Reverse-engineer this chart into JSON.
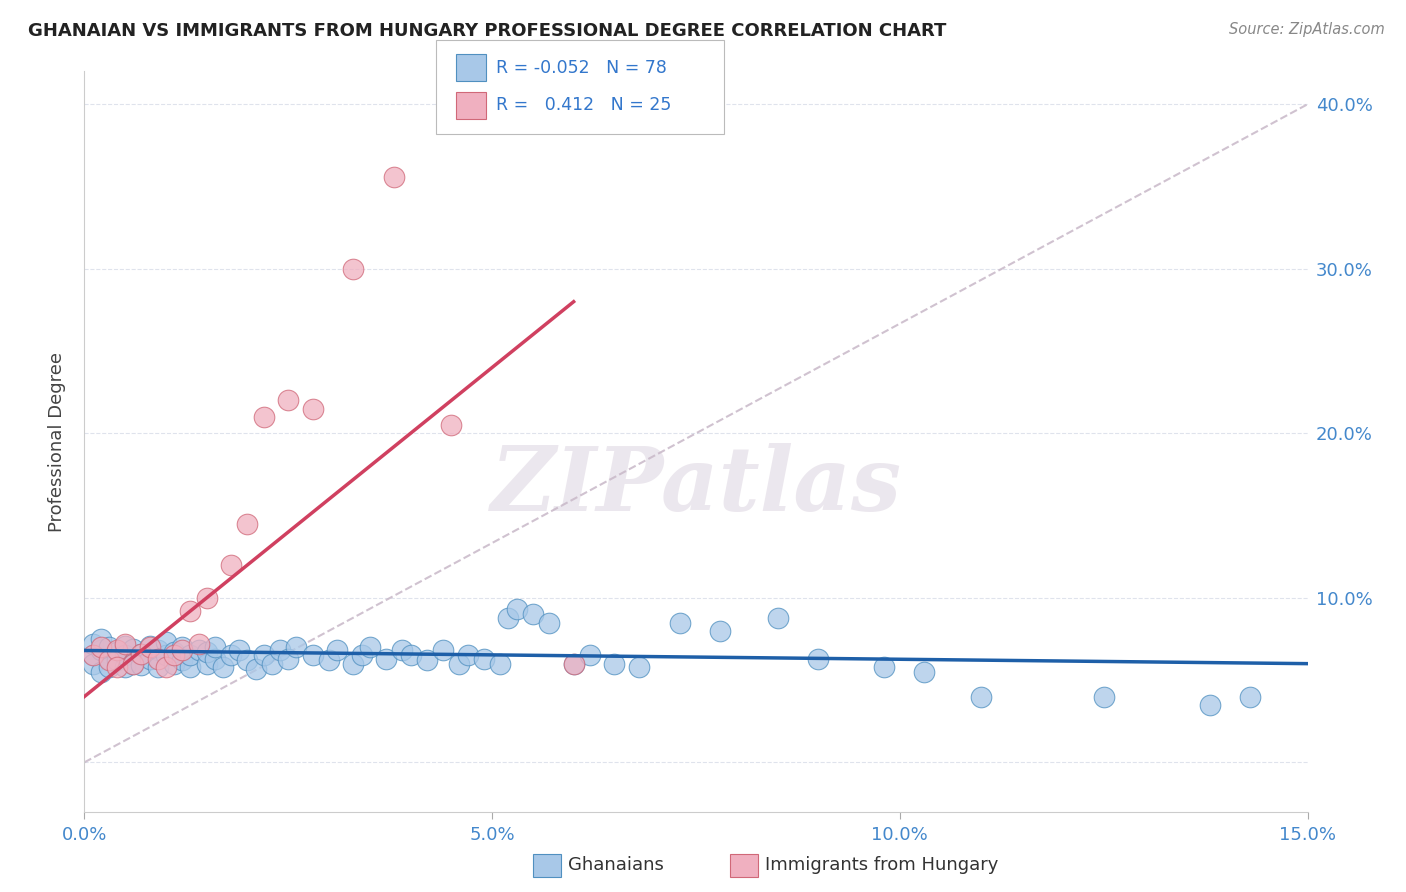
{
  "title": "GHANAIAN VS IMMIGRANTS FROM HUNGARY PROFESSIONAL DEGREE CORRELATION CHART",
  "source": "Source: ZipAtlas.com",
  "ylabel": "Professional Degree",
  "watermark_text": "ZIPatlas",
  "legend_blue_r": "-0.052",
  "legend_blue_n": "78",
  "legend_pink_r": "0.412",
  "legend_pink_n": "25",
  "blue_fill": "#a8c8e8",
  "blue_edge": "#5090c0",
  "pink_fill": "#f0b0c0",
  "pink_edge": "#d06878",
  "blue_line_color": "#1e5fa8",
  "pink_line_color": "#d04060",
  "diag_line_color": "#c8b8c8",
  "x_min": 0.0,
  "x_max": 0.15,
  "y_min": -0.03,
  "y_max": 0.42,
  "x_ticks": [
    0.0,
    0.05,
    0.1,
    0.15
  ],
  "x_tick_labels": [
    "0.0%",
    "5.0%",
    "10.0%",
    "15.0%"
  ],
  "y_ticks": [
    0.0,
    0.1,
    0.2,
    0.3,
    0.4
  ],
  "y_tick_labels": [
    "",
    "10.0%",
    "20.0%",
    "30.0%",
    "40.0%"
  ],
  "grid_color": "#d8dce8",
  "blue_x": [
    0.001,
    0.001,
    0.001,
    0.002,
    0.002,
    0.002,
    0.003,
    0.003,
    0.003,
    0.004,
    0.004,
    0.005,
    0.005,
    0.005,
    0.006,
    0.006,
    0.007,
    0.007,
    0.008,
    0.008,
    0.009,
    0.009,
    0.01,
    0.01,
    0.011,
    0.011,
    0.012,
    0.012,
    0.013,
    0.013,
    0.014,
    0.015,
    0.015,
    0.016,
    0.016,
    0.017,
    0.018,
    0.019,
    0.02,
    0.021,
    0.022,
    0.023,
    0.024,
    0.025,
    0.026,
    0.028,
    0.03,
    0.031,
    0.033,
    0.034,
    0.035,
    0.037,
    0.039,
    0.04,
    0.042,
    0.044,
    0.046,
    0.047,
    0.049,
    0.051,
    0.052,
    0.053,
    0.055,
    0.057,
    0.06,
    0.062,
    0.065,
    0.068,
    0.073,
    0.078,
    0.085,
    0.09,
    0.098,
    0.103,
    0.11,
    0.125,
    0.138,
    0.143
  ],
  "blue_y": [
    0.065,
    0.072,
    0.06,
    0.068,
    0.055,
    0.075,
    0.063,
    0.07,
    0.058,
    0.067,
    0.062,
    0.071,
    0.058,
    0.065,
    0.069,
    0.06,
    0.066,
    0.059,
    0.071,
    0.063,
    0.068,
    0.058,
    0.065,
    0.073,
    0.06,
    0.067,
    0.062,
    0.07,
    0.058,
    0.065,
    0.068,
    0.06,
    0.067,
    0.063,
    0.07,
    0.058,
    0.065,
    0.068,
    0.062,
    0.057,
    0.065,
    0.06,
    0.068,
    0.063,
    0.07,
    0.065,
    0.062,
    0.068,
    0.06,
    0.065,
    0.07,
    0.063,
    0.068,
    0.065,
    0.062,
    0.068,
    0.06,
    0.065,
    0.063,
    0.06,
    0.088,
    0.093,
    0.09,
    0.085,
    0.06,
    0.065,
    0.06,
    0.058,
    0.085,
    0.08,
    0.088,
    0.063,
    0.058,
    0.055,
    0.04,
    0.04,
    0.035,
    0.04
  ],
  "pink_x": [
    0.001,
    0.002,
    0.003,
    0.004,
    0.004,
    0.005,
    0.006,
    0.007,
    0.008,
    0.009,
    0.01,
    0.011,
    0.012,
    0.013,
    0.014,
    0.015,
    0.018,
    0.02,
    0.022,
    0.025,
    0.028,
    0.033,
    0.038,
    0.045,
    0.06
  ],
  "pink_y": [
    0.065,
    0.07,
    0.062,
    0.068,
    0.058,
    0.072,
    0.06,
    0.066,
    0.07,
    0.063,
    0.058,
    0.065,
    0.068,
    0.092,
    0.072,
    0.1,
    0.12,
    0.145,
    0.21,
    0.22,
    0.215,
    0.3,
    0.356,
    0.205,
    0.06
  ],
  "blue_line_x": [
    0.0,
    0.15
  ],
  "blue_line_y": [
    0.068,
    0.06
  ],
  "pink_line_x": [
    0.0,
    0.06
  ],
  "pink_line_y": [
    0.04,
    0.28
  ],
  "diag_line_x": [
    0.0,
    0.15
  ],
  "diag_line_y": [
    0.0,
    0.4
  ]
}
